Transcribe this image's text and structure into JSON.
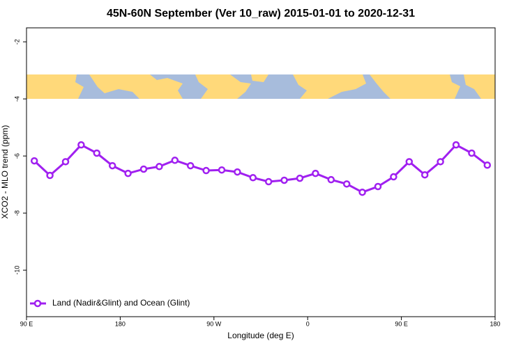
{
  "chart_data": {
    "type": "line",
    "title": "45N-60N September (Ver 10_raw)   2015-01-01 to 2020-12-31",
    "x_label": "Longitude (deg E)",
    "y_label": "XCO2 - MLO trend (ppm)",
    "x": [
      97.5,
      112.5,
      127.5,
      142.5,
      157.5,
      172.5,
      187.5,
      202.5,
      217.5,
      232.5,
      247.5,
      262.5,
      277.5,
      292.5,
      307.5,
      322.5,
      337.5,
      352.5,
      367.5,
      382.5,
      397.5,
      412.5,
      427.5,
      442.5,
      457.5,
      472.5,
      487.5,
      502.5,
      517.5,
      532.5
    ],
    "series": [
      {
        "name": "Land (Nadir&Glint) and Ocean (Glint)",
        "color": "#a020f0",
        "values": [
          -6.17,
          -6.68,
          -6.2,
          -5.61,
          -5.9,
          -6.34,
          -6.61,
          -6.46,
          -6.37,
          -6.15,
          -6.34,
          -6.51,
          -6.49,
          -6.56,
          -6.76,
          -6.9,
          -6.85,
          -6.78,
          -6.61,
          -6.83,
          -6.98,
          -7.27,
          -7.07,
          -6.73,
          -6.2,
          -6.66,
          -6.2,
          -5.61,
          -5.9,
          -6.32
        ]
      }
    ],
    "xlim": [
      90,
      540
    ],
    "xticks": [
      {
        "value": 90,
        "label": "90 E"
      },
      {
        "value": 180,
        "label": "180"
      },
      {
        "value": 270,
        "label": "90 W"
      },
      {
        "value": 360,
        "label": "0"
      },
      {
        "value": 450,
        "label": "90 E"
      },
      {
        "value": 540,
        "label": "180"
      }
    ],
    "ylim": [
      -11.63,
      -1.51
    ],
    "yticks": [
      -2,
      -4,
      -6,
      -8,
      -10
    ],
    "legend": "bottomleft"
  }
}
